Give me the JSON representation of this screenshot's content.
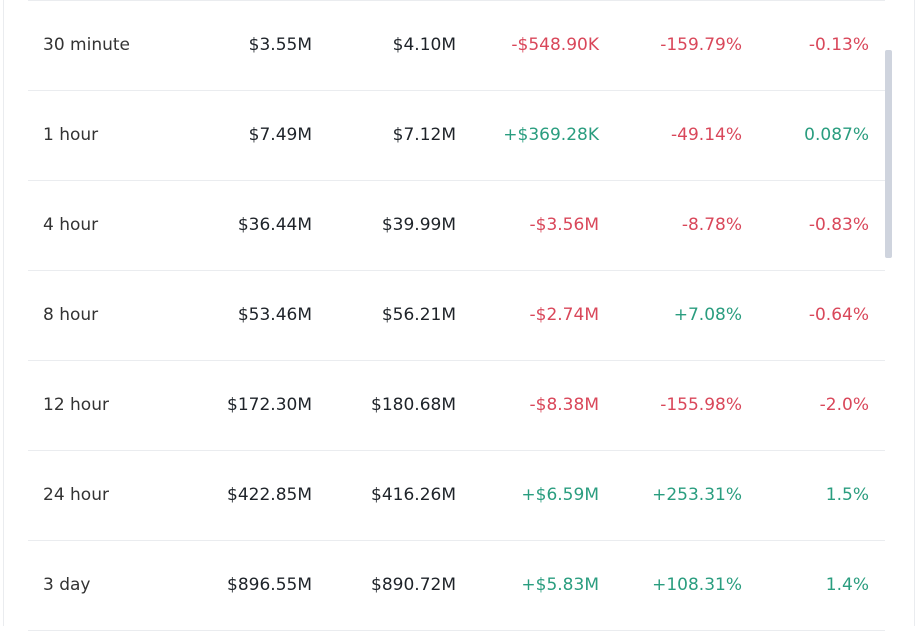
{
  "colors": {
    "negative": "#d9475a",
    "positive": "#2a9d7f"
  },
  "rows": [
    {
      "period": "30 minute",
      "col1": "$3.55M",
      "col2": "$4.10M",
      "col3": "-$548.90K",
      "col4": "-159.79%",
      "col5": "-0.13%"
    },
    {
      "period": "1 hour",
      "col1": "$7.49M",
      "col2": "$7.12M",
      "col3": "+$369.28K",
      "col4": "-49.14%",
      "col5": "0.087%"
    },
    {
      "period": "4 hour",
      "col1": "$36.44M",
      "col2": "$39.99M",
      "col3": "-$3.56M",
      "col4": "-8.78%",
      "col5": "-0.83%"
    },
    {
      "period": "8 hour",
      "col1": "$53.46M",
      "col2": "$56.21M",
      "col3": "-$2.74M",
      "col4": "+7.08%",
      "col5": "-0.64%"
    },
    {
      "period": "12 hour",
      "col1": "$172.30M",
      "col2": "$180.68M",
      "col3": "-$8.38M",
      "col4": "-155.98%",
      "col5": "-2.0%"
    },
    {
      "period": "24 hour",
      "col1": "$422.85M",
      "col2": "$416.26M",
      "col3": "+$6.59M",
      "col4": "+253.31%",
      "col5": "1.5%"
    },
    {
      "period": "3 day",
      "col1": "$896.55M",
      "col2": "$890.72M",
      "col3": "+$5.83M",
      "col4": "+108.31%",
      "col5": "1.4%"
    }
  ]
}
